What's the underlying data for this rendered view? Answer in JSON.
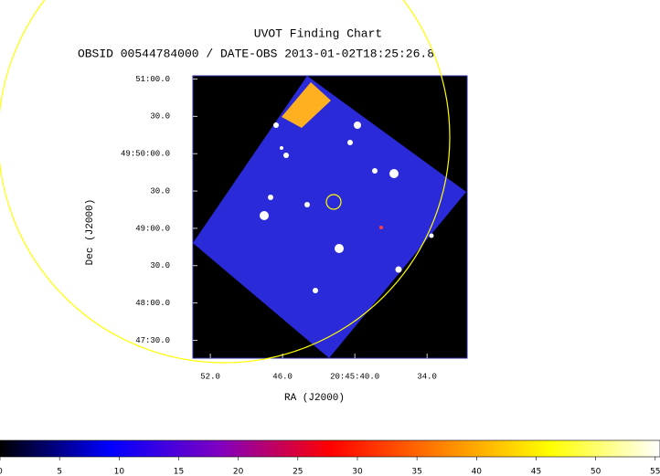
{
  "chart_data": {
    "type": "image",
    "title": "UVOT Finding Chart",
    "subtitle": "OBSID 00544784000 / DATE-OBS 2013-01-02T18:25:26.8",
    "x_label": "RA (J2000)",
    "y_label": "Dec (J2000)",
    "xlim": [
      311.4727,
      311.3778
    ],
    "xticks": [
      {
        "value": 311.466667,
        "label": "52.0"
      },
      {
        "value": 311.441667,
        "label": "46.0"
      },
      {
        "value": 311.416667,
        "label": "20:45:40.0"
      },
      {
        "value": 311.391667,
        "label": "34.0"
      }
    ],
    "ylim": [
      49.7877,
      49.8507
    ],
    "yticks": [
      {
        "value": 49.85,
        "label": "51:00.0"
      },
      {
        "value": 49.841667,
        "label": "30.0"
      },
      {
        "value": 49.833333,
        "label": "49:50:00.0"
      },
      {
        "value": 49.825,
        "label": "30.0"
      },
      {
        "value": 49.816667,
        "label": "49:00.0"
      },
      {
        "value": 49.808333,
        "label": "30.0"
      },
      {
        "value": 49.8,
        "label": "48:00.0"
      },
      {
        "value": 49.791667,
        "label": "47:30.0"
      }
    ],
    "colorbar": {
      "lim": [
        0,
        55.4
      ],
      "ticks": [
        0,
        5,
        10,
        15,
        20,
        25,
        30,
        35,
        40,
        45,
        50,
        55
      ],
      "colors": [
        "#000000",
        "#0000ff",
        "#8000c0",
        "#ff0000",
        "#ff8000",
        "#ffff00",
        "#ffffff"
      ]
    }
  }
}
